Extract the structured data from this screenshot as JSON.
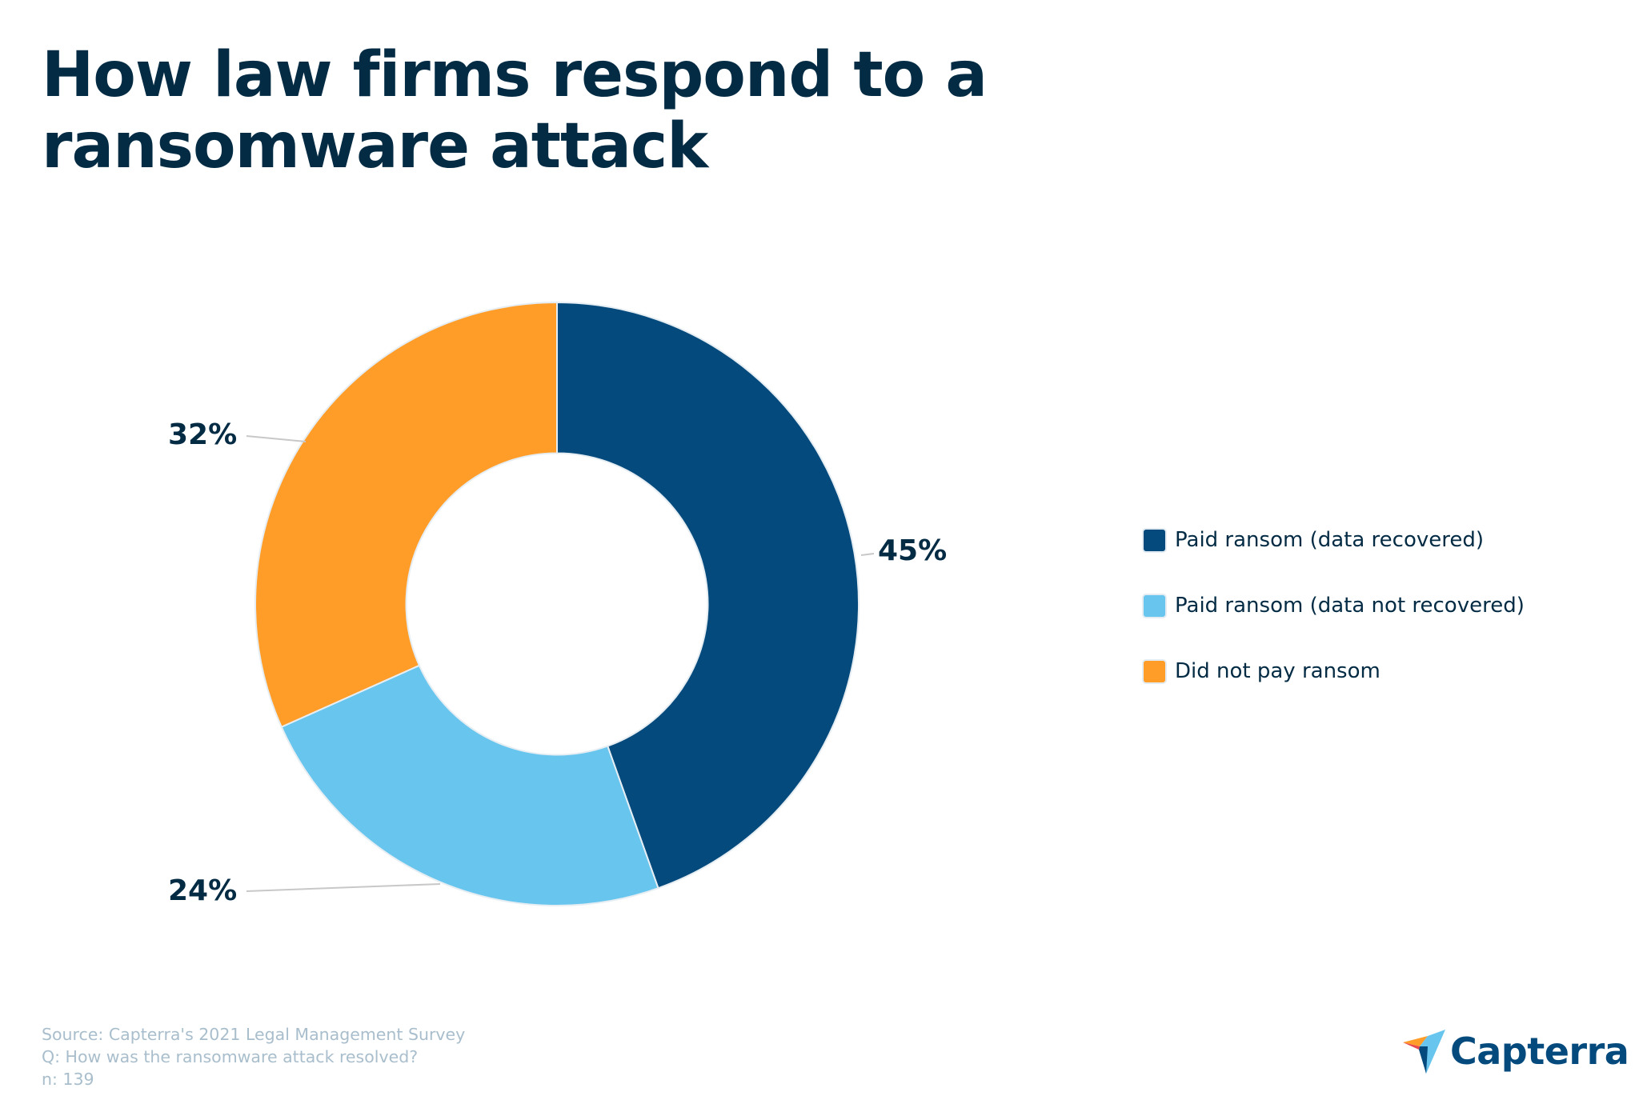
{
  "title": {
    "line1": "How law firms respond to a",
    "line2": "ransomware attack"
  },
  "labels": {
    "seg0": "45%",
    "seg1": "24%",
    "seg2": "32%"
  },
  "legend": {
    "items": [
      {
        "label": "Paid ransom (data recovered)",
        "color": "#044A7C"
      },
      {
        "label": "Paid ransom (data not recovered)",
        "color": "#68C5EE"
      },
      {
        "label": "Did not pay ransom",
        "color": "#FF9D28"
      }
    ]
  },
  "footer": {
    "source": "Source: Capterra's 2021 Legal Management Survey",
    "question": "Q: How was the ransomware attack resolved?",
    "n": "n: 139"
  },
  "brand": {
    "name": "Capterra",
    "icon": "capterra-arrow-icon"
  },
  "colors": {
    "title": "#032B44",
    "navy": "#044A7C",
    "light_blue": "#68C5EE",
    "orange": "#FF9D28",
    "source_text": "#A9BECC",
    "leader_line": "#C8C8C8"
  },
  "chart_data": {
    "type": "pie",
    "subtype": "donut",
    "title": "How law firms respond to a ransomware attack",
    "categories": [
      "Paid ransom (data recovered)",
      "Paid ransom (data not recovered)",
      "Did not pay ransom"
    ],
    "values": [
      45,
      24,
      32
    ],
    "unit": "%",
    "data_labels": [
      "45%",
      "24%",
      "32%"
    ],
    "colors": [
      "#044A7C",
      "#68C5EE",
      "#FF9D28"
    ],
    "start_angle": "12 o'clock",
    "direction": "clockwise",
    "inner_radius_ratio": 0.5,
    "legend_position": "right",
    "source": "Source: Capterra's 2021 Legal Management Survey",
    "question": "Q: How was the ransomware attack resolved?",
    "n": 139
  }
}
